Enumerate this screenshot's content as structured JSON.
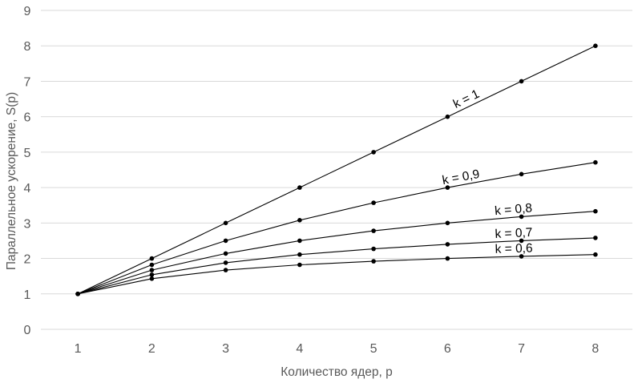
{
  "chart_data": {
    "type": "line",
    "title": "",
    "xlabel": "Количество ядер, p",
    "ylabel": "Параллельное ускорение, S(p)",
    "xlim": [
      0.5,
      8.5
    ],
    "ylim": [
      0,
      9
    ],
    "x_ticks": [
      1,
      2,
      3,
      4,
      5,
      6,
      7,
      8
    ],
    "y_ticks": [
      0,
      1,
      2,
      3,
      4,
      5,
      6,
      7,
      8,
      9
    ],
    "grid": "horizontal",
    "legend": "none",
    "x": [
      1,
      2,
      3,
      4,
      5,
      6,
      7,
      8
    ],
    "series": [
      {
        "name": "k = 1",
        "label_at": 6.3,
        "values": [
          1,
          2,
          3,
          4,
          5,
          6,
          7,
          8
        ]
      },
      {
        "name": "k = 0,9",
        "label_at": 6.2,
        "values": [
          1,
          1.82,
          2.5,
          3.08,
          3.57,
          4.0,
          4.38,
          4.71
        ]
      },
      {
        "name": "k = 0,8",
        "label_at": 6.9,
        "values": [
          1,
          1.67,
          2.14,
          2.5,
          2.78,
          3.0,
          3.18,
          3.33
        ]
      },
      {
        "name": "k = 0,7",
        "label_at": 6.9,
        "values": [
          1,
          1.54,
          1.88,
          2.11,
          2.27,
          2.4,
          2.5,
          2.58
        ]
      },
      {
        "name": "k = 0,6",
        "label_at": 6.9,
        "values": [
          1,
          1.43,
          1.67,
          1.82,
          1.92,
          2.0,
          2.06,
          2.11
        ]
      }
    ]
  }
}
